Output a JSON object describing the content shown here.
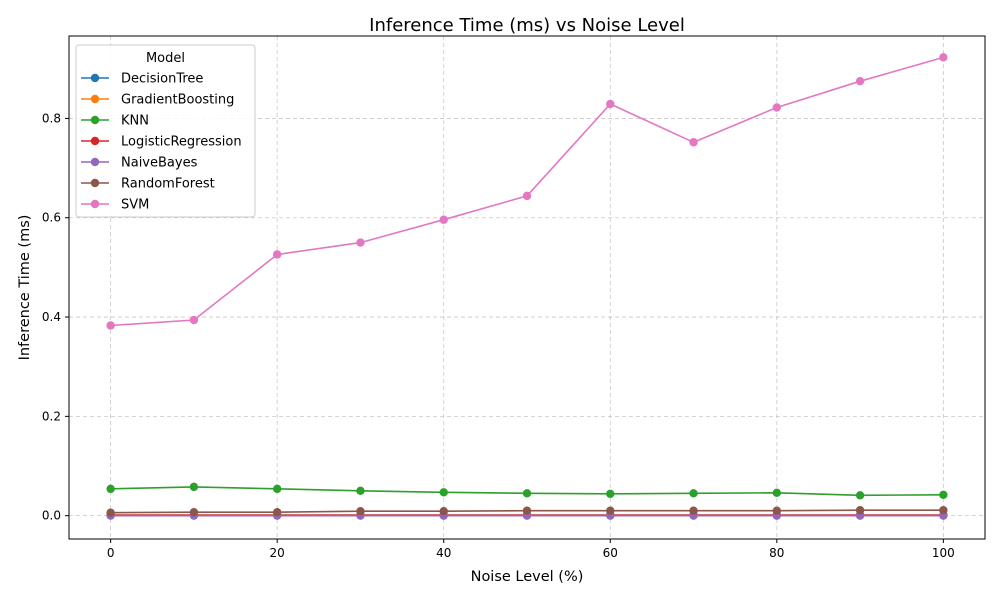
{
  "chart_data": {
    "type": "line",
    "title": "Inference Time (ms) vs Noise Level",
    "xlabel": "Noise Level (%)",
    "ylabel": "Inference Time (ms)",
    "x": [
      0,
      10,
      20,
      30,
      40,
      50,
      60,
      70,
      80,
      90,
      100
    ],
    "xlim": [
      -5,
      105
    ],
    "ylim": [
      -0.047,
      0.966
    ],
    "xticks": [
      0,
      20,
      40,
      60,
      80,
      100
    ],
    "yticks": [
      0.0,
      0.2,
      0.4,
      0.6,
      0.8
    ],
    "ytick_labels": [
      "0.0",
      "0.2",
      "0.4",
      "0.6",
      "0.8"
    ],
    "grid": true,
    "legend": {
      "title": "Model",
      "placement": "top-left"
    },
    "series": [
      {
        "name": "DecisionTree",
        "color": "#1f77b4",
        "values": [
          0.001,
          0.001,
          0.001,
          0.001,
          0.001,
          0.001,
          0.001,
          0.001,
          0.001,
          0.001,
          0.001
        ]
      },
      {
        "name": "GradientBoosting",
        "color": "#ff7f0e",
        "values": [
          0.001,
          0.001,
          0.001,
          0.001,
          0.001,
          0.001,
          0.001,
          0.001,
          0.001,
          0.001,
          0.001
        ]
      },
      {
        "name": "KNN",
        "color": "#2ca02c",
        "values": [
          0.054,
          0.058,
          0.054,
          0.05,
          0.047,
          0.045,
          0.044,
          0.045,
          0.046,
          0.041,
          0.042
        ]
      },
      {
        "name": "LogisticRegression",
        "color": "#d62728",
        "values": [
          0.001,
          0.001,
          0.001,
          0.001,
          0.001,
          0.001,
          0.001,
          0.001,
          0.001,
          0.001,
          0.001
        ]
      },
      {
        "name": "NaiveBayes",
        "color": "#9467bd",
        "values": [
          0.0,
          0.0,
          0.0,
          0.0,
          0.0,
          0.0,
          0.0,
          0.0,
          0.0,
          0.0,
          0.0
        ]
      },
      {
        "name": "RandomForest",
        "color": "#8c564b",
        "values": [
          0.006,
          0.007,
          0.007,
          0.009,
          0.009,
          0.01,
          0.01,
          0.01,
          0.01,
          0.011,
          0.011
        ]
      },
      {
        "name": "SVM",
        "color": "#e377c2",
        "values": [
          0.383,
          0.394,
          0.526,
          0.55,
          0.596,
          0.644,
          0.829,
          0.752,
          0.822,
          0.875,
          0.923
        ]
      }
    ]
  }
}
